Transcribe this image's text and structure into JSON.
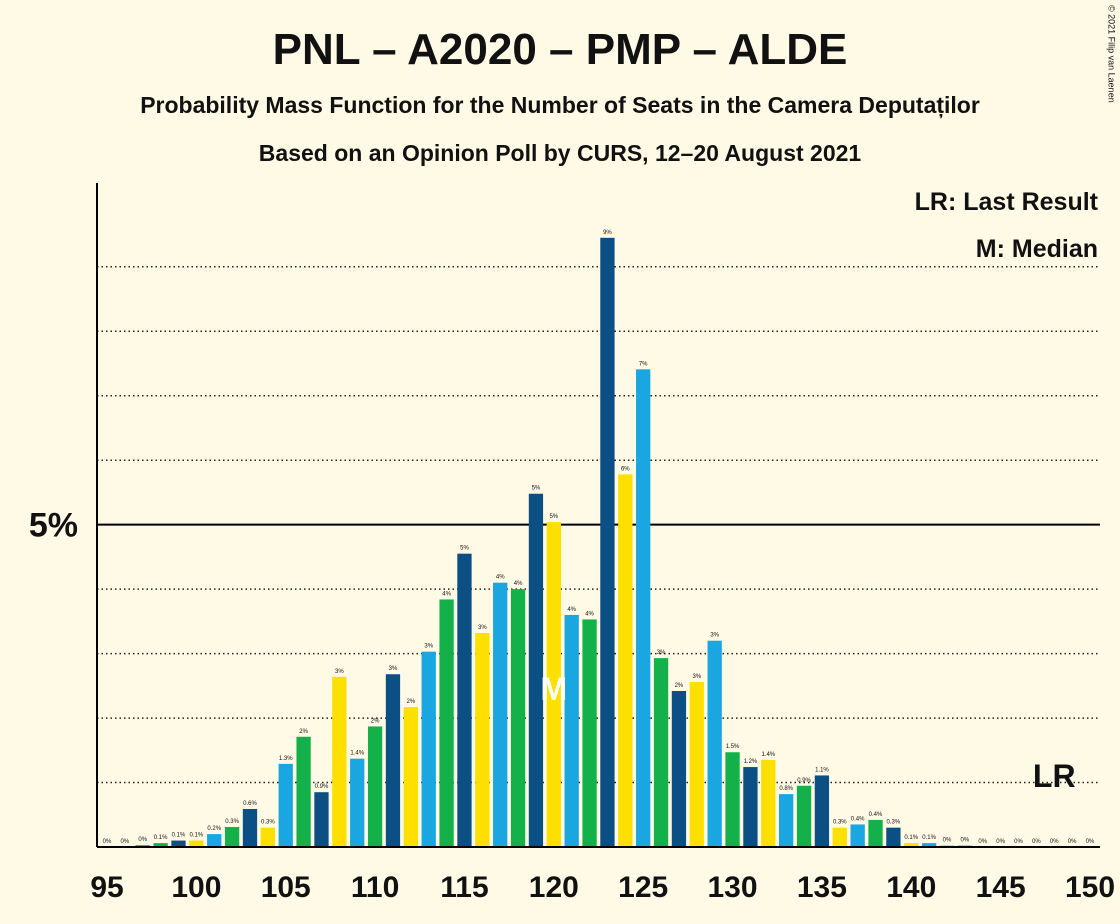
{
  "chart_data": {
    "type": "bar",
    "title": "PNL – A2020 – PMP – ALDE",
    "subtitle": "Probability Mass Function for the Number of Seats in the Camera Deputaților",
    "subtitle2": "Based on an Opinion Poll by CURS, 12–20 August 2021",
    "legend": [
      "LR: Last Result",
      "M: Median"
    ],
    "copyright": "© 2021 Filip van Laenen",
    "median": 120,
    "median_label": "M",
    "last_result": 148,
    "last_result_label": "LR",
    "colors": [
      "#fde000",
      "#1aa6e0",
      "#14b04a",
      "#0b4f85"
    ],
    "x": [
      95,
      96,
      97,
      98,
      99,
      100,
      101,
      102,
      103,
      104,
      105,
      106,
      107,
      108,
      109,
      110,
      111,
      112,
      113,
      114,
      115,
      116,
      117,
      118,
      119,
      120,
      121,
      122,
      123,
      124,
      125,
      126,
      127,
      128,
      129,
      130,
      131,
      132,
      133,
      134,
      135,
      136,
      137,
      138,
      139,
      140,
      141,
      142,
      143,
      144,
      145,
      146,
      147,
      148,
      149,
      150
    ],
    "values": [
      0,
      0,
      0.03,
      0.06,
      0.1,
      0.1,
      0.2,
      0.31,
      0.59,
      0.3,
      1.29,
      1.71,
      0.85,
      2.64,
      1.37,
      1.87,
      2.68,
      2.17,
      3.03,
      3.84,
      4.55,
      3.32,
      4.1,
      4.0,
      5.48,
      5.04,
      3.6,
      3.53,
      9.45,
      5.78,
      7.41,
      2.93,
      2.42,
      2.56,
      3.2,
      1.47,
      1.24,
      1.35,
      0.82,
      0.95,
      1.11,
      0.3,
      0.35,
      0.42,
      0.3,
      0.06,
      0.06,
      0.02,
      0.02,
      0,
      0,
      0,
      0,
      0,
      0,
      0
    ],
    "value_labels": [
      "0%",
      "0%",
      "0%",
      "0.1%",
      "0.1%",
      "0.1%",
      "0.2%",
      "0.3%",
      "0.6%",
      "0.3%",
      "1.3%",
      "2%",
      "0.9%",
      "3%",
      "1.4%",
      "2%",
      "3%",
      "2%",
      "3%",
      "4%",
      "5%",
      "3%",
      "4%",
      "4%",
      "5%",
      "5%",
      "4%",
      "4%",
      "9%",
      "6%",
      "7%",
      "3%",
      "2%",
      "3%",
      "3%",
      "1.5%",
      "1.2%",
      "1.4%",
      "0.8%",
      "0.9%",
      "1.1%",
      "0.3%",
      "0.4%",
      "0.4%",
      "0.3%",
      "0.1%",
      "0.1%",
      "0%",
      "0%",
      "0%",
      "0%",
      "0%",
      "0%",
      "0%",
      "0%",
      "0%"
    ],
    "xlim": [
      95,
      150
    ],
    "xticks": [
      95,
      100,
      105,
      110,
      115,
      120,
      125,
      130,
      135,
      140,
      145,
      150
    ],
    "ylim": [
      0,
      10.3
    ],
    "yticks": [
      {
        "value": 5,
        "label": "5%"
      }
    ],
    "minor_yticks": [
      1,
      2,
      3,
      4,
      6,
      7,
      8,
      9
    ]
  }
}
